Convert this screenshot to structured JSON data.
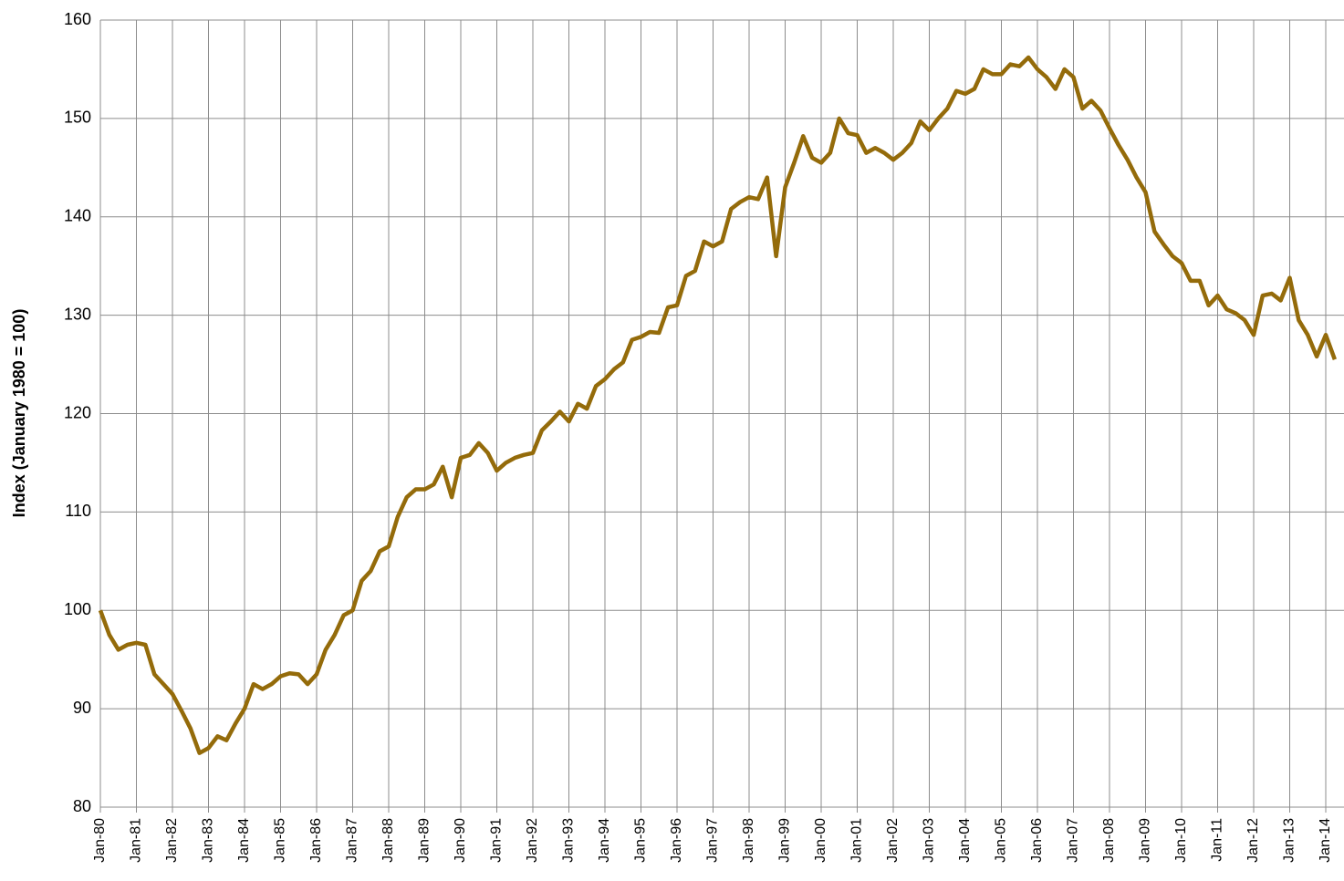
{
  "chart_data": {
    "type": "line",
    "y_label": "Index (January 1980 = 100)",
    "color": "#946b0a",
    "categories": [
      "Jan-80",
      null,
      null,
      null,
      "Jan-81",
      null,
      null,
      null,
      "Jan-82",
      null,
      null,
      null,
      "Jan-83",
      null,
      null,
      null,
      "Jan-84",
      null,
      null,
      null,
      "Jan-85",
      null,
      null,
      null,
      "Jan-86",
      null,
      null,
      null,
      "Jan-87",
      null,
      null,
      null,
      "Jan-88",
      null,
      null,
      null,
      "Jan-89",
      null,
      null,
      null,
      "Jan-90",
      null,
      null,
      null,
      "Jan-91",
      null,
      null,
      null,
      "Jan-92",
      null,
      null,
      null,
      "Jan-93",
      null,
      null,
      null,
      "Jan-94",
      null,
      null,
      null,
      "Jan-95",
      null,
      null,
      null,
      "Jan-96",
      null,
      null,
      null,
      "Jan-97",
      null,
      null,
      null,
      "Jan-98",
      null,
      null,
      null,
      "Jan-99",
      null,
      null,
      null,
      "Jan-00",
      null,
      null,
      null,
      "Jan-01",
      null,
      null,
      null,
      "Jan-02",
      null,
      null,
      null,
      "Jan-03",
      null,
      null,
      null,
      "Jan-04",
      null,
      null,
      null,
      "Jan-05",
      null,
      null,
      null,
      "Jan-06",
      null,
      null,
      null,
      "Jan-07",
      null,
      null,
      null,
      "Jan-08",
      null,
      null,
      null,
      "Jan-09",
      null,
      null,
      null,
      "Jan-10",
      null,
      null,
      null,
      "Jan-11",
      null,
      null,
      null,
      "Jan-12",
      null,
      null,
      null,
      "Jan-13",
      null,
      null,
      null,
      "Jan-14",
      null
    ],
    "values": [
      100,
      97.5,
      96,
      96.5,
      96.7,
      96.5,
      93.5,
      92.5,
      91.5,
      89.8,
      88,
      85.5,
      86,
      87.2,
      86.8,
      88.5,
      90,
      92.5,
      92,
      92.5,
      93.3,
      93.6,
      93.5,
      92.5,
      93.5,
      96,
      97.5,
      99.5,
      100,
      103,
      104,
      106,
      106.5,
      109.5,
      111.5,
      112.3,
      112.3,
      112.8,
      114.6,
      111.5,
      115.5,
      115.8,
      117,
      116,
      114.2,
      115,
      115.5,
      115.8,
      116,
      118.3,
      119.2,
      120.2,
      119.2,
      121,
      120.5,
      122.8,
      123.5,
      124.5,
      125.2,
      127.5,
      127.8,
      128.3,
      128.2,
      130.8,
      131,
      134,
      134.5,
      137.5,
      137,
      137.5,
      140.8,
      141.5,
      142,
      141.8,
      144,
      136,
      143,
      145.5,
      148.2,
      146,
      145.5,
      146.5,
      150,
      148.5,
      148.3,
      146.5,
      147,
      146.5,
      145.8,
      146.5,
      147.5,
      149.7,
      148.8,
      150,
      151,
      152.8,
      152.5,
      153,
      155,
      154.5,
      154.5,
      155.5,
      155.3,
      156.2,
      155,
      154.2,
      153,
      155,
      154.2,
      151,
      151.8,
      150.8,
      149,
      147.3,
      145.8,
      144,
      142.5,
      138.5,
      137.2,
      136,
      135.3,
      133.5,
      133.5,
      131,
      132,
      130.6,
      130.2,
      129.5,
      128,
      132,
      132.2,
      131.5,
      133.8,
      129.5,
      128,
      125.8,
      128,
      125.5
    ],
    "ylim": [
      80,
      160
    ],
    "yticks": [
      80,
      90,
      100,
      110,
      120,
      130,
      140,
      150,
      160
    ],
    "grid": true
  }
}
